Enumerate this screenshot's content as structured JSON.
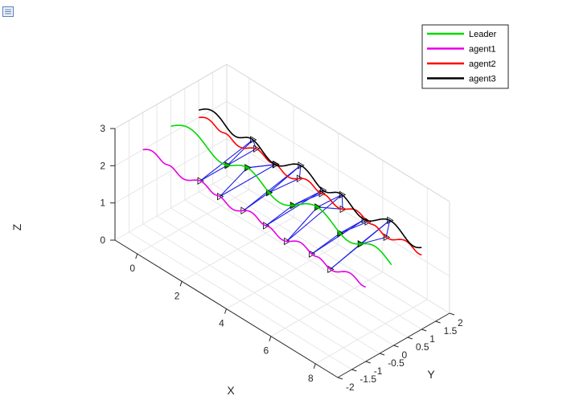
{
  "toolbar": {
    "icon": "figure-menu-icon"
  },
  "chart_data": {
    "type": "line3d",
    "xlabel": "X",
    "ylabel": "Y",
    "zlabel": "Z",
    "xlim": [
      -1,
      9
    ],
    "ylim": [
      -2,
      2
    ],
    "zlim": [
      0,
      3
    ],
    "xticks": [
      "0",
      "2",
      "4",
      "6",
      "8"
    ],
    "yticks": [
      "-2",
      "-1.5",
      "-1",
      "-0.5",
      "0",
      "0.5",
      "1",
      "1.5",
      "2"
    ],
    "zticks": [
      "0",
      "1",
      "2",
      "3"
    ],
    "grid": true,
    "legend_position": "top-right",
    "series": [
      {
        "name": "Leader",
        "color": "#00d900",
        "y0": 0,
        "z0": 2.2,
        "zamp": 0.2,
        "ydrift": 0.0,
        "waves": 3.5
      },
      {
        "name": "agent1",
        "color": "#e600e6",
        "y0": -1.0,
        "z0": 2.0,
        "zamp": 0.06,
        "ydrift": 0.0,
        "waves": 9
      },
      {
        "name": "agent2",
        "color": "#ff0000",
        "y0": 1.0,
        "z0": 2.0,
        "zamp": 0.06,
        "ydrift": 0.0,
        "waves": 9
      },
      {
        "name": "agent3",
        "color": "#000000",
        "y0": 1.0,
        "z0": 2.2,
        "zamp": 0.15,
        "ydrift": 0.0,
        "waves": 5
      }
    ],
    "x_range": [
      -1,
      9
    ],
    "link_color": "#1e1ee6",
    "link_steps_x": [
      1.5,
      2.5,
      3.5,
      4.5,
      5.5,
      6.5,
      7.5
    ]
  }
}
